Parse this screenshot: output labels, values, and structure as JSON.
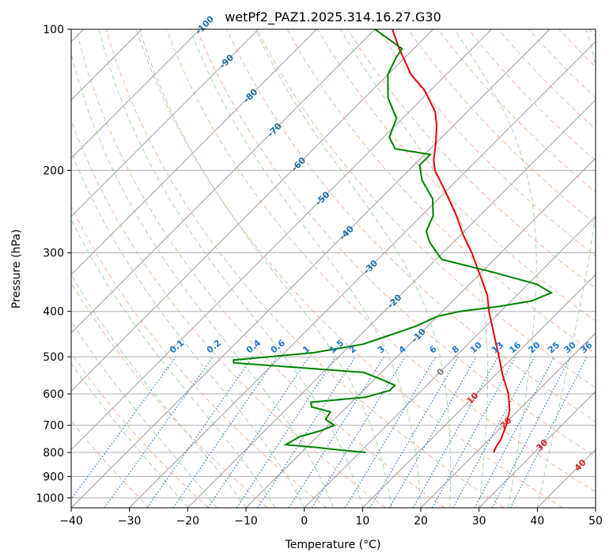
{
  "chart_data": {
    "type": "line",
    "title": "wetPf2_PAZ1.2025.314.16.27.G30",
    "xlabel": "Temperature (°C)",
    "ylabel": "Pressure (hPa)",
    "xlim": [
      -40,
      50
    ],
    "ylim": [
      1050,
      100
    ],
    "yscale": "log",
    "grid": true,
    "x_ticks": [
      "−40",
      "−30",
      "−20",
      "−10",
      "0",
      "10",
      "20",
      "30",
      "40",
      "50"
    ],
    "y_ticks": [
      "100",
      "200",
      "300",
      "400",
      "500",
      "600",
      "700",
      "800",
      "900",
      "1000"
    ],
    "skew": true,
    "colors": {
      "temperature": "#e8000b",
      "dewpoint": "#008000",
      "isotherm_grid": "#9e9e9e",
      "dry_adiabat": "#f0a080",
      "moist_adiabat": "#8fc98f",
      "mixing_ratio": "#1f77d4",
      "isotherm_label_cold": "#1f6fa8",
      "isotherm_label_warm": "#d62728"
    },
    "isotherm_labels": [
      {
        "value": -100,
        "text": "-100"
      },
      {
        "value": -90,
        "text": "-90"
      },
      {
        "value": -80,
        "text": "-80"
      },
      {
        "value": -70,
        "text": "-70"
      },
      {
        "value": -60,
        "text": "-60"
      },
      {
        "value": -50,
        "text": "-50"
      },
      {
        "value": -40,
        "text": "-40"
      },
      {
        "value": -30,
        "text": "-30"
      },
      {
        "value": -20,
        "text": "-20"
      },
      {
        "value": -10,
        "text": "-10"
      },
      {
        "value": 0,
        "text": "0"
      },
      {
        "value": 10,
        "text": "10"
      },
      {
        "value": 20,
        "text": "20"
      },
      {
        "value": 30,
        "text": "30"
      },
      {
        "value": 40,
        "text": "40"
      }
    ],
    "mixing_ratio_labels": [
      "0.1",
      "0.2",
      "0.4",
      "0.6",
      "1",
      "1.5",
      "2",
      "3",
      "4",
      "6",
      "8",
      "10",
      "13",
      "16",
      "20",
      "25",
      "30",
      "36"
    ],
    "series": [
      {
        "name": "",
        "role": "temperature",
        "points": [
          {
            "p": 800,
            "t": 23.0
          },
          {
            "p": 780,
            "t": 22.5
          },
          {
            "p": 750,
            "t": 22.0
          },
          {
            "p": 700,
            "t": 20.5
          },
          {
            "p": 650,
            "t": 18.5
          },
          {
            "p": 600,
            "t": 15.5
          },
          {
            "p": 550,
            "t": 11.5
          },
          {
            "p": 500,
            "t": 7.5
          },
          {
            "p": 450,
            "t": 3.0
          },
          {
            "p": 400,
            "t": -2.0
          },
          {
            "p": 370,
            "t": -5.0
          },
          {
            "p": 340,
            "t": -9.0
          },
          {
            "p": 300,
            "t": -15.0
          },
          {
            "p": 275,
            "t": -19.5
          },
          {
            "p": 250,
            "t": -24.0
          },
          {
            "p": 220,
            "t": -30.5
          },
          {
            "p": 200,
            "t": -35.5
          },
          {
            "p": 190,
            "t": -37.5
          },
          {
            "p": 175,
            "t": -40.0
          },
          {
            "p": 160,
            "t": -43.0
          },
          {
            "p": 150,
            "t": -45.5
          },
          {
            "p": 135,
            "t": -51.0
          },
          {
            "p": 125,
            "t": -56.0
          },
          {
            "p": 110,
            "t": -62.5
          },
          {
            "p": 100,
            "t": -67.0
          }
        ]
      },
      {
        "name": "",
        "role": "dewpoint",
        "points": [
          {
            "p": 800,
            "t": 1.0
          },
          {
            "p": 790,
            "t": -4.0
          },
          {
            "p": 780,
            "t": -8.5
          },
          {
            "p": 770,
            "t": -14.0
          },
          {
            "p": 740,
            "t": -13.0
          },
          {
            "p": 720,
            "t": -10.5
          },
          {
            "p": 700,
            "t": -9.0
          },
          {
            "p": 680,
            "t": -11.5
          },
          {
            "p": 655,
            "t": -12.0
          },
          {
            "p": 640,
            "t": -16.0
          },
          {
            "p": 625,
            "t": -17.0
          },
          {
            "p": 610,
            "t": -8.5
          },
          {
            "p": 590,
            "t": -5.5
          },
          {
            "p": 575,
            "t": -5.5
          },
          {
            "p": 560,
            "t": -8.5
          },
          {
            "p": 540,
            "t": -13.0
          },
          {
            "p": 525,
            "t": -27.0
          },
          {
            "p": 515,
            "t": -37.0
          },
          {
            "p": 508,
            "t": -37.5
          },
          {
            "p": 500,
            "t": -32.0
          },
          {
            "p": 490,
            "t": -25.0
          },
          {
            "p": 470,
            "t": -18.0
          },
          {
            "p": 450,
            "t": -15.0
          },
          {
            "p": 430,
            "t": -12.0
          },
          {
            "p": 410,
            "t": -10.0
          },
          {
            "p": 400,
            "t": -7.0
          },
          {
            "p": 390,
            "t": -1.0
          },
          {
            "p": 380,
            "t": 3.5
          },
          {
            "p": 365,
            "t": 5.5
          },
          {
            "p": 350,
            "t": 1.5
          },
          {
            "p": 330,
            "t": -8.0
          },
          {
            "p": 310,
            "t": -19.0
          },
          {
            "p": 300,
            "t": -21.0
          },
          {
            "p": 285,
            "t": -24.0
          },
          {
            "p": 270,
            "t": -26.5
          },
          {
            "p": 250,
            "t": -28.0
          },
          {
            "p": 230,
            "t": -31.0
          },
          {
            "p": 210,
            "t": -36.0
          },
          {
            "p": 195,
            "t": -39.0
          },
          {
            "p": 185,
            "t": -39.0
          },
          {
            "p": 180,
            "t": -46.0
          },
          {
            "p": 170,
            "t": -49.0
          },
          {
            "p": 155,
            "t": -51.0
          },
          {
            "p": 140,
            "t": -56.0
          },
          {
            "p": 125,
            "t": -60.0
          },
          {
            "p": 115,
            "t": -61.5
          },
          {
            "p": 110,
            "t": -62.0
          },
          {
            "p": 100,
            "t": -70.0
          }
        ]
      }
    ]
  }
}
